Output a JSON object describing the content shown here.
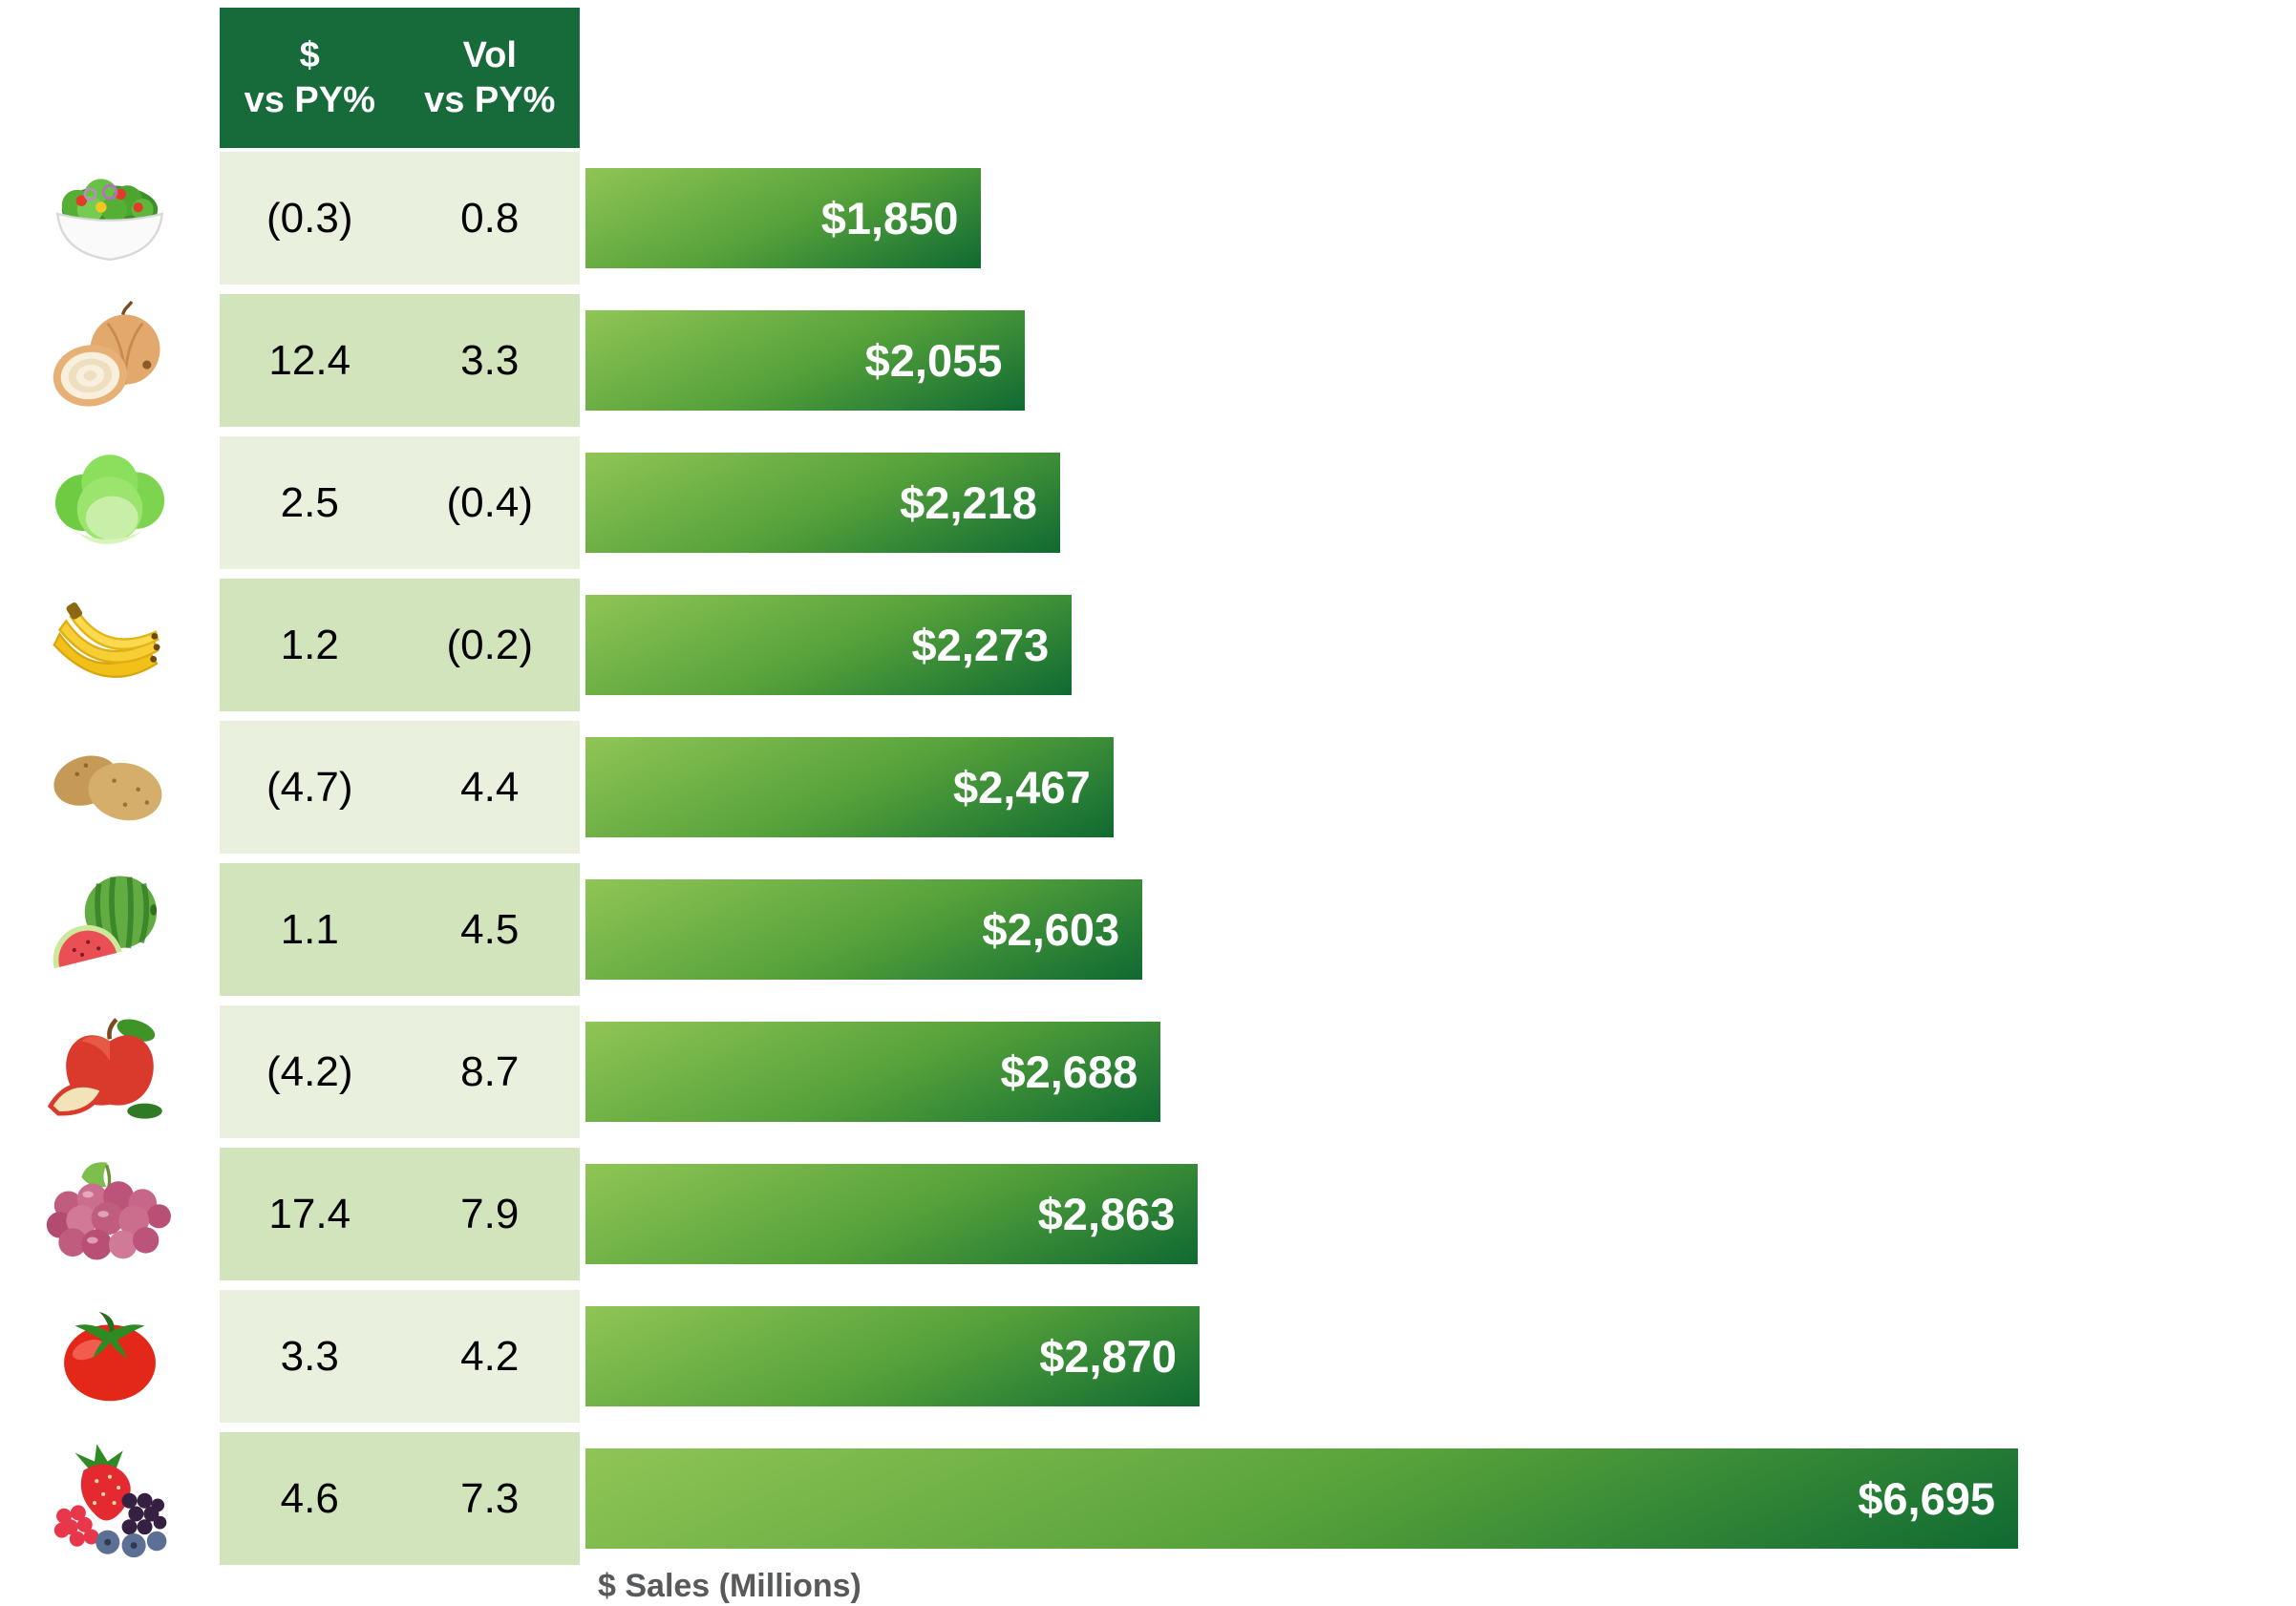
{
  "chart_data": {
    "type": "bar",
    "orientation": "horizontal",
    "title": "",
    "xlabel": "$ Sales (Millions)",
    "xlim": [
      0,
      6695
    ],
    "grid": false,
    "legend": false,
    "categories": [
      "salad",
      "onions",
      "lettuce",
      "bananas",
      "potatoes",
      "watermelon",
      "apples",
      "grapes",
      "tomatoes",
      "berries"
    ],
    "series": [
      {
        "name": "$ Sales (Millions)",
        "values": [
          1850,
          2055,
          2218,
          2273,
          2467,
          2603,
          2688,
          2863,
          2870,
          6695
        ]
      },
      {
        "name": "$ vs PY%",
        "values": [
          -0.3,
          12.4,
          2.5,
          1.2,
          -4.7,
          1.1,
          -4.2,
          17.4,
          3.3,
          4.6
        ]
      },
      {
        "name": "Vol vs PY%",
        "values": [
          0.8,
          3.3,
          -0.4,
          -0.2,
          4.4,
          4.5,
          8.7,
          7.9,
          4.2,
          7.3
        ]
      }
    ]
  },
  "table": {
    "header_dollar_line1": "$",
    "header_dollar_line2": "vs PY%",
    "header_vol_line1": "Vol",
    "header_vol_line2": "vs PY%"
  },
  "rows": [
    {
      "icon": "salad-icon",
      "dollar_vs_py": "(0.3)",
      "vol_vs_py": "0.8",
      "sales_label": "$1,850",
      "sales_value": 1850
    },
    {
      "icon": "onion-icon",
      "dollar_vs_py": "12.4",
      "vol_vs_py": "3.3",
      "sales_label": "$2,055",
      "sales_value": 2055
    },
    {
      "icon": "lettuce-icon",
      "dollar_vs_py": "2.5",
      "vol_vs_py": "(0.4)",
      "sales_label": "$2,218",
      "sales_value": 2218
    },
    {
      "icon": "banana-icon",
      "dollar_vs_py": "1.2",
      "vol_vs_py": "(0.2)",
      "sales_label": "$2,273",
      "sales_value": 2273
    },
    {
      "icon": "potato-icon",
      "dollar_vs_py": "(4.7)",
      "vol_vs_py": "4.4",
      "sales_label": "$2,467",
      "sales_value": 2467
    },
    {
      "icon": "watermelon-icon",
      "dollar_vs_py": "1.1",
      "vol_vs_py": "4.5",
      "sales_label": "$2,603",
      "sales_value": 2603
    },
    {
      "icon": "apple-icon",
      "dollar_vs_py": "(4.2)",
      "vol_vs_py": "8.7",
      "sales_label": "$2,688",
      "sales_value": 2688
    },
    {
      "icon": "grapes-icon",
      "dollar_vs_py": "17.4",
      "vol_vs_py": "7.9",
      "sales_label": "$2,863",
      "sales_value": 2863
    },
    {
      "icon": "tomato-icon",
      "dollar_vs_py": "3.3",
      "vol_vs_py": "4.2",
      "sales_label": "$2,870",
      "sales_value": 2870
    },
    {
      "icon": "berries-icon",
      "dollar_vs_py": "4.6",
      "vol_vs_py": "7.3",
      "sales_label": "$6,695",
      "sales_value": 6695
    }
  ],
  "axis": {
    "xlabel": "$ Sales (Millions)"
  },
  "colors": {
    "header_green": "#176B3A",
    "row_light": "#E9F0DE",
    "row_dark": "#D2E4BC",
    "bar_gradient_start": "#90C556",
    "bar_gradient_end": "#0F6A32",
    "bar_label_text": "#FFFFFF",
    "table_text": "#000000",
    "axis_label_text": "#58595B"
  }
}
